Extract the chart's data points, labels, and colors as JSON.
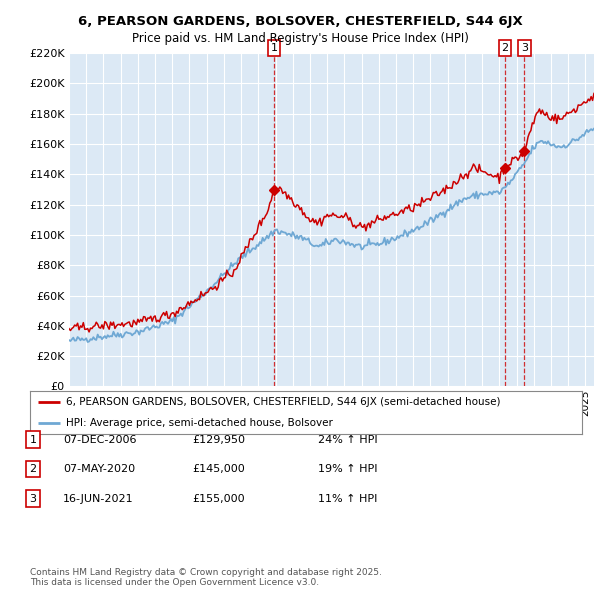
{
  "title1": "6, PEARSON GARDENS, BOLSOVER, CHESTERFIELD, S44 6JX",
  "title2": "Price paid vs. HM Land Registry's House Price Index (HPI)",
  "background_color": "#ffffff",
  "plot_bg_color": "#dce9f5",
  "grid_color": "#ffffff",
  "sale_color": "#cc0000",
  "hpi_color": "#6fa8d4",
  "sale_dates_years": [
    2006.917,
    2020.333,
    2021.458
  ],
  "sale_prices": [
    129950,
    145000,
    155000
  ],
  "sale_labels": [
    "1",
    "2",
    "3"
  ],
  "annotation_rows": [
    {
      "label": "1",
      "date": "07-DEC-2006",
      "price": "£129,950",
      "change": "24% ↑ HPI"
    },
    {
      "label": "2",
      "date": "07-MAY-2020",
      "price": "£145,000",
      "change": "19% ↑ HPI"
    },
    {
      "label": "3",
      "date": "16-JUN-2021",
      "price": "£155,000",
      "change": "11% ↑ HPI"
    }
  ],
  "legend_entries": [
    "6, PEARSON GARDENS, BOLSOVER, CHESTERFIELD, S44 6JX (semi-detached house)",
    "HPI: Average price, semi-detached house, Bolsover"
  ],
  "footer": "Contains HM Land Registry data © Crown copyright and database right 2025.\nThis data is licensed under the Open Government Licence v3.0.",
  "ylim": [
    0,
    220000
  ],
  "yticks": [
    0,
    20000,
    40000,
    60000,
    80000,
    100000,
    120000,
    140000,
    160000,
    180000,
    200000,
    220000
  ],
  "xstart": 1995,
  "xend": 2025.5
}
